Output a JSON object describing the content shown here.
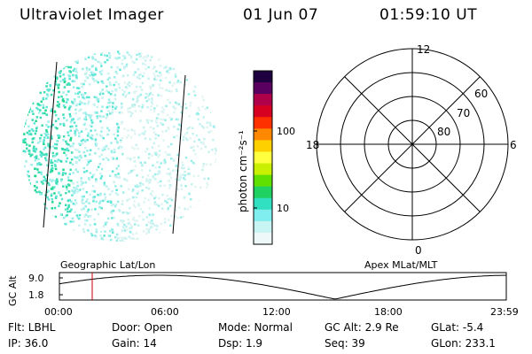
{
  "header": {
    "title": "Ultraviolet Imager",
    "date": "01 Jun 07",
    "time": "01:59:10 UT"
  },
  "colorbar": {
    "unit_label": "photon cm⁻²s⁻¹",
    "ticks": [
      "100",
      "10"
    ],
    "colors": [
      "#1e0040",
      "#5a0060",
      "#b0004a",
      "#d80020",
      "#ff3000",
      "#ff8800",
      "#ffd000",
      "#ffff40",
      "#c8f000",
      "#60e000",
      "#20d060",
      "#30e0c0",
      "#80eeee",
      "#c8f4f4",
      "#eef8f8"
    ]
  },
  "left_panel": {
    "caption": "Geographic Lat/Lon",
    "dot_colors": [
      "#3cdcb4",
      "#5ee6d6",
      "#9ceeea",
      "#c6f2f0",
      "#e0f4f2",
      "#20d890"
    ]
  },
  "polar_plot": {
    "caption": "Apex MLat/MLT",
    "mlt_labels": {
      "top": "12",
      "bottom": "0",
      "left": "18",
      "right": "6"
    },
    "lat_labels": [
      "60",
      "70",
      "80"
    ]
  },
  "altitude_plot": {
    "ylabel": "GC Alt",
    "yticks": [
      "9.0",
      "1.8"
    ],
    "xticks": [
      "00:00",
      "06:00",
      "12:00",
      "18:00",
      "23:59"
    ],
    "cursor_color": "#cc0000"
  },
  "footer": {
    "row1": [
      {
        "label": "Flt: LBHL"
      },
      {
        "label": "Door: Open"
      },
      {
        "label": "Mode: Normal"
      },
      {
        "label": "GC Alt: 2.9 Re"
      },
      {
        "label": "GLat:  -5.4"
      }
    ],
    "row2": [
      {
        "label": "IP: 36.0"
      },
      {
        "label": "Gain: 14"
      },
      {
        "label": "Dsp:    1.9"
      },
      {
        "label": "Seq: 39"
      },
      {
        "label": "GLon: 233.1"
      }
    ]
  }
}
